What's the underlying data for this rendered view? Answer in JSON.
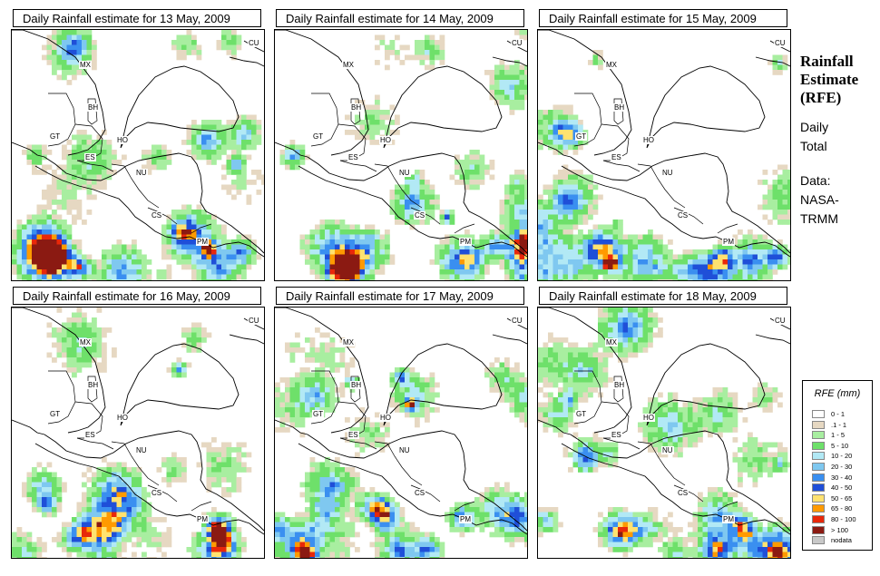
{
  "panels": [
    {
      "title": "Daily Rainfall estimate for  13 May, 2009",
      "seed": 13
    },
    {
      "title": "Daily Rainfall estimate for  14 May, 2009",
      "seed": 14
    },
    {
      "title": "Daily Rainfall estimate for  15 May, 2009",
      "seed": 15
    },
    {
      "title": "Daily Rainfall estimate for  16 May, 2009",
      "seed": 16
    },
    {
      "title": "Daily Rainfall estimate for  17 May, 2009",
      "seed": 17
    },
    {
      "title": "Daily Rainfall estimate for  18 May, 2009",
      "seed": 18
    }
  ],
  "country_labels": [
    "MX",
    "BH",
    "GT",
    "HO",
    "ES",
    "NU",
    "CS",
    "PM",
    "CU"
  ],
  "side": {
    "title_line1": "Rainfall",
    "title_line2": "Estimate",
    "title_line3": "(RFE)",
    "daily_line1": "Daily",
    "daily_line2": "Total",
    "data_line1": "Data:",
    "data_line2": "NASA-",
    "data_line3": "TRMM"
  },
  "legend": {
    "title": "RFE (mm)",
    "items": [
      {
        "label": "0 - 1",
        "color": "#ffffff"
      },
      {
        "label": ".1 - 1",
        "color": "#e6d8c2"
      },
      {
        "label": "1 - 5",
        "color": "#a8eea0"
      },
      {
        "label": "5 - 10",
        "color": "#6ee06a"
      },
      {
        "label": "10 - 20",
        "color": "#b2e9f5"
      },
      {
        "label": "20 - 30",
        "color": "#7fc8f0"
      },
      {
        "label": "30 - 40",
        "color": "#3a8ff0"
      },
      {
        "label": "40 - 50",
        "color": "#1f4fd8"
      },
      {
        "label": "50 - 65",
        "color": "#ffe270"
      },
      {
        "label": "65 - 80",
        "color": "#ff9a00"
      },
      {
        "label": "80 - 100",
        "color": "#e8280a"
      },
      {
        "label": "> 100",
        "color": "#8b1a12"
      },
      {
        "label": "nodata",
        "color": "#c8c8c8"
      }
    ]
  }
}
